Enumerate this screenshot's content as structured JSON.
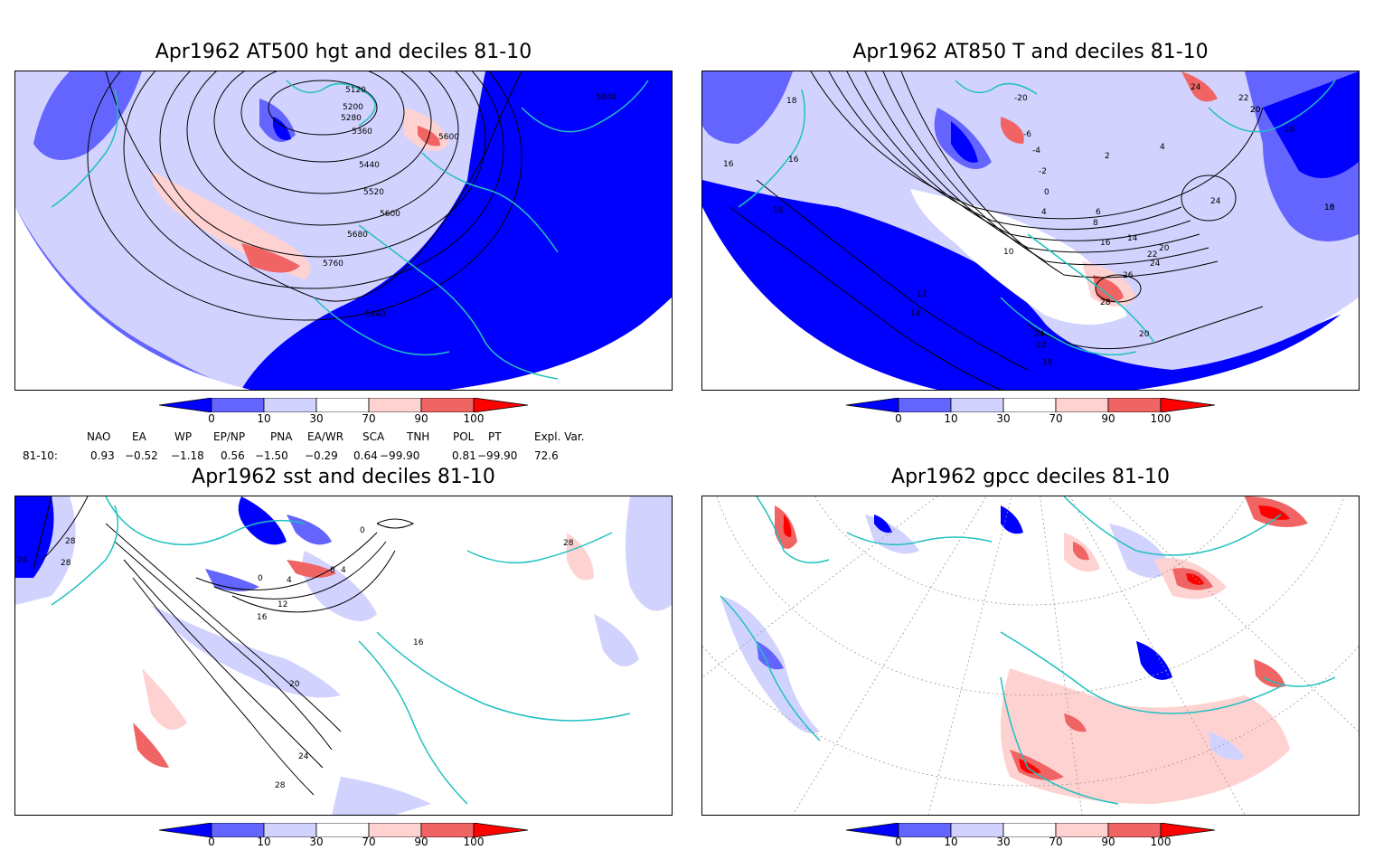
{
  "panels": [
    {
      "id": "p1",
      "title": "Apr1962 AT500 hgt and deciles 81-10",
      "contour_labels": [
        "5120",
        "5200",
        "5280",
        "5360",
        "5440",
        "5520",
        "5600",
        "5680",
        "5760",
        "5840",
        "5600",
        "5840"
      ]
    },
    {
      "id": "p2",
      "title": "Apr1962 AT850 T and deciles 81-10",
      "contour_labels": [
        "18",
        "16",
        "16",
        "18",
        "12",
        "14",
        "-20",
        "-6",
        "-4",
        "-2",
        "0",
        "2",
        "4",
        "6",
        "8",
        "10",
        "14",
        "16",
        "20",
        "22",
        "24",
        "26",
        "28",
        "24",
        "22",
        "20",
        "18",
        "20",
        "24",
        "22",
        "20",
        "18",
        "16",
        "4",
        "24",
        "18"
      ]
    },
    {
      "id": "p3",
      "title": "Apr1962 sst and deciles 81-10",
      "contour_labels": [
        "24",
        "28",
        "28",
        "0",
        "4",
        "8",
        "12",
        "16",
        "16",
        "20",
        "24",
        "28",
        "28",
        "0",
        "4"
      ]
    },
    {
      "id": "p4",
      "title": "Apr1962 gpcc deciles 81-10",
      "contour_labels": []
    }
  ],
  "colorbar": {
    "labels": [
      "0",
      "10",
      "30",
      "70",
      "90",
      "100"
    ],
    "colors": [
      "#0000ff",
      "#6464ff",
      "#d2d2ff",
      "#ffffff",
      "#ffd2d2",
      "#f06464",
      "#ff0000"
    ]
  },
  "indices": {
    "row_label": "81-10:",
    "headers": [
      "NAO",
      "EA",
      "WP",
      "EP/NP",
      "PNA",
      "EA/WR",
      "SCA",
      "TNH",
      "POL",
      "PT",
      "Expl. Var."
    ],
    "values": [
      "0.93",
      "−0.52",
      "−1.18",
      "0.56",
      "−1.50",
      "−0.29",
      "0.64",
      "−99.90",
      "0.81",
      "−99.90",
      "72.6"
    ]
  },
  "colors": {
    "coastline": "#20c0c0",
    "contour": "#000000",
    "border": "#000000"
  }
}
